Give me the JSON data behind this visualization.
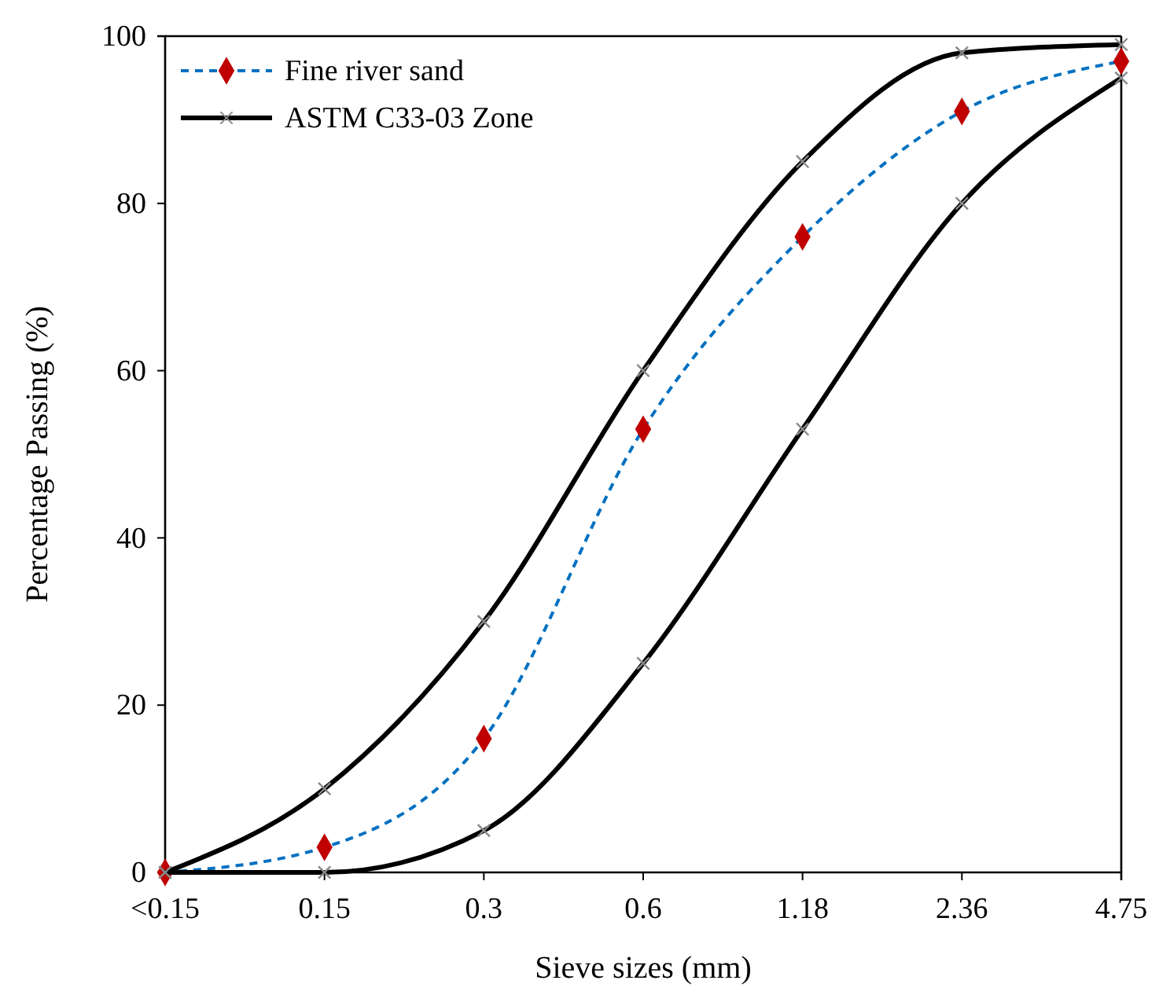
{
  "chart_data": {
    "type": "line",
    "xlabel": "Sieve sizes (mm)",
    "ylabel": "Percentage Passing (%)",
    "categories": [
      "<0.15",
      "0.15",
      "0.3",
      "0.6",
      "1.18",
      "2.36",
      "4.75"
    ],
    "ylim": [
      0,
      100
    ],
    "yticks": [
      0,
      20,
      40,
      60,
      80,
      100
    ],
    "grid": false,
    "legend": "top left",
    "series": [
      {
        "name": "Fine river sand",
        "color": "#0070c0",
        "marker": "diamond",
        "colors": [
          "#c00000",
          "#c00000",
          "#c00000",
          "#c00000",
          "#c00000",
          "#c00000",
          "#c00000"
        ],
        "line_style": "dashed",
        "values": [
          0,
          3,
          16,
          53,
          76,
          91,
          97
        ]
      },
      {
        "name": "ASTM C33-03 Zone",
        "color": "#000000",
        "marker": "cross",
        "line_style": "solid",
        "values": [
          0,
          10,
          30,
          60,
          85,
          98,
          99
        ]
      },
      {
        "color": "#000000",
        "marker": "cross",
        "line_style": "solid",
        "values": [
          0,
          0,
          5,
          25,
          53,
          80,
          95
        ]
      }
    ]
  }
}
